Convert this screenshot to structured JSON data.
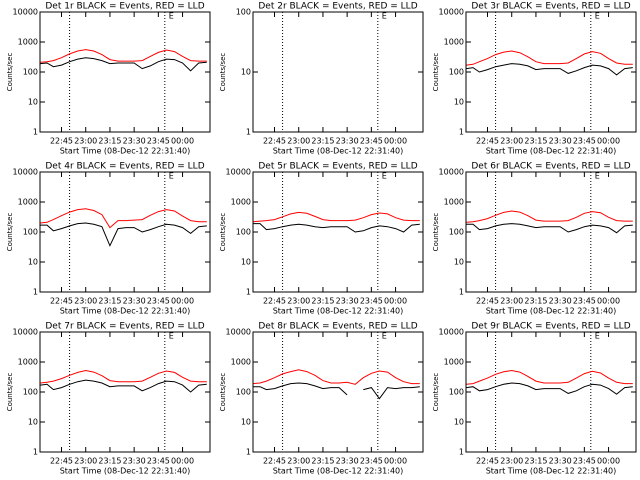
{
  "chart_data": [
    {
      "type": "line",
      "title": "Det 1r BLACK = Events, RED = LLD",
      "ylabel": "Counts/sec",
      "xlabel": "Start Time (08-Dec-12 22:31:40)",
      "log_y": true,
      "xlim": [
        31.67,
        137
      ],
      "ylim": [
        1,
        10000
      ],
      "yticks": [
        1,
        10,
        100,
        1000,
        10000
      ],
      "xticks": [
        {
          "value": 45,
          "label": "22:45"
        },
        {
          "value": 60,
          "label": "23:00"
        },
        {
          "value": 75,
          "label": "23:15"
        },
        {
          "value": 90,
          "label": "23:30"
        },
        {
          "value": 105,
          "label": "23:45"
        },
        {
          "value": 120,
          "label": "00:00"
        }
      ],
      "vlines": [
        50,
        109
      ],
      "annotations": [
        {
          "text": "E",
          "x": 113
        }
      ],
      "x": [
        32,
        36,
        40,
        45,
        50,
        55,
        60,
        65,
        70,
        75,
        80,
        85,
        90,
        95,
        100,
        105,
        110,
        115,
        120,
        125,
        130,
        135
      ],
      "series": [
        {
          "color": "#000000",
          "values": [
            190,
            200,
            150,
            170,
            220,
            270,
            300,
            280,
            240,
            190,
            200,
            200,
            200,
            130,
            160,
            220,
            270,
            260,
            200,
            110,
            200,
            210
          ]
        },
        {
          "color": "#ff0000",
          "values": [
            210,
            220,
            240,
            300,
            400,
            500,
            560,
            500,
            380,
            260,
            230,
            230,
            230,
            240,
            330,
            450,
            540,
            480,
            330,
            240,
            230,
            230
          ]
        }
      ]
    },
    {
      "type": "line",
      "title": "Det 2r BLACK = Events, RED = LLD",
      "ylabel": "Counts/sec",
      "xlabel": "Start Time (08-Dec-12 22:31:40)",
      "log_y": true,
      "xlim": [
        31.67,
        137
      ],
      "ylim": [
        1,
        100
      ],
      "yticks": [
        1,
        10,
        100
      ],
      "xticks": [
        {
          "value": 45,
          "label": "22:45"
        },
        {
          "value": 60,
          "label": "23:00"
        },
        {
          "value": 75,
          "label": "23:15"
        },
        {
          "value": 90,
          "label": "23:30"
        },
        {
          "value": 105,
          "label": "23:45"
        },
        {
          "value": 120,
          "label": "00:00"
        }
      ],
      "vlines": [
        50,
        109
      ],
      "annotations": [
        {
          "text": "E",
          "x": 113
        }
      ]
    },
    {
      "type": "line",
      "title": "Det 3r BLACK = Events, RED = LLD",
      "ylabel": "Counts/sec",
      "xlabel": "Start Time (08-Dec-12 22:31:40)",
      "log_y": true,
      "xlim": [
        31.67,
        137
      ],
      "ylim": [
        1,
        10000
      ],
      "yticks": [
        1,
        10,
        100,
        1000,
        10000
      ],
      "xticks": [
        {
          "value": 45,
          "label": "22:45"
        },
        {
          "value": 60,
          "label": "23:00"
        },
        {
          "value": 75,
          "label": "23:15"
        },
        {
          "value": 90,
          "label": "23:30"
        },
        {
          "value": 105,
          "label": "23:45"
        },
        {
          "value": 120,
          "label": "00:00"
        }
      ],
      "vlines": [
        50,
        109
      ],
      "annotations": [
        {
          "text": "E",
          "x": 113
        }
      ],
      "x": [
        32,
        36,
        40,
        45,
        50,
        55,
        60,
        65,
        70,
        75,
        80,
        85,
        90,
        95,
        100,
        105,
        110,
        115,
        120,
        125,
        130,
        135
      ],
      "series": [
        {
          "color": "#000000",
          "values": [
            130,
            140,
            100,
            120,
            150,
            170,
            190,
            180,
            160,
            120,
            130,
            130,
            130,
            90,
            110,
            140,
            170,
            160,
            130,
            80,
            130,
            140
          ]
        },
        {
          "color": "#ff0000",
          "values": [
            170,
            180,
            220,
            280,
            380,
            460,
            500,
            440,
            320,
            220,
            190,
            190,
            190,
            200,
            280,
            400,
            480,
            420,
            280,
            200,
            180,
            180
          ]
        }
      ]
    },
    {
      "type": "line",
      "title": "Det 4r BLACK = Events, RED = LLD",
      "ylabel": "Counts/sec",
      "xlabel": "Start Time (08-Dec-12 22:31:40)",
      "log_y": true,
      "xlim": [
        31.67,
        137
      ],
      "ylim": [
        1,
        10000
      ],
      "yticks": [
        1,
        10,
        100,
        1000,
        10000
      ],
      "xticks": [
        {
          "value": 45,
          "label": "22:45"
        },
        {
          "value": 60,
          "label": "23:00"
        },
        {
          "value": 75,
          "label": "23:15"
        },
        {
          "value": 90,
          "label": "23:30"
        },
        {
          "value": 105,
          "label": "23:45"
        },
        {
          "value": 120,
          "label": "00:00"
        }
      ],
      "vlines": [
        50,
        109
      ],
      "annotations": [
        {
          "text": "E",
          "x": 113
        }
      ],
      "x": [
        32,
        36,
        40,
        45,
        50,
        55,
        60,
        65,
        70,
        75,
        80,
        85,
        90,
        95,
        100,
        105,
        110,
        115,
        120,
        125,
        130,
        135
      ],
      "series": [
        {
          "color": "#000000",
          "values": [
            170,
            170,
            110,
            130,
            160,
            190,
            200,
            180,
            150,
            35,
            130,
            140,
            140,
            100,
            120,
            150,
            180,
            170,
            140,
            90,
            150,
            160
          ]
        },
        {
          "color": "#ff0000",
          "values": [
            200,
            210,
            260,
            350,
            460,
            560,
            600,
            520,
            380,
            140,
            240,
            240,
            250,
            260,
            360,
            480,
            560,
            500,
            340,
            240,
            220,
            220
          ]
        }
      ]
    },
    {
      "type": "line",
      "title": "Det 5r BLACK = Events, RED = LLD",
      "ylabel": "Counts/sec",
      "xlabel": "Start Time (08-Dec-12 22:31:40)",
      "log_y": true,
      "xlim": [
        31.67,
        137
      ],
      "ylim": [
        1,
        10000
      ],
      "yticks": [
        1,
        10,
        100,
        1000,
        10000
      ],
      "xticks": [
        {
          "value": 45,
          "label": "22:45"
        },
        {
          "value": 60,
          "label": "23:00"
        },
        {
          "value": 75,
          "label": "23:15"
        },
        {
          "value": 90,
          "label": "23:30"
        },
        {
          "value": 105,
          "label": "23:45"
        },
        {
          "value": 120,
          "label": "00:00"
        }
      ],
      "vlines": [
        50,
        109
      ],
      "annotations": [
        {
          "text": "E",
          "x": 113
        }
      ],
      "x": [
        32,
        36,
        40,
        45,
        50,
        55,
        60,
        65,
        70,
        75,
        80,
        85,
        90,
        95,
        100,
        105,
        110,
        115,
        120,
        125,
        130,
        135
      ],
      "series": [
        {
          "color": "#000000",
          "values": [
            190,
            190,
            120,
            130,
            150,
            170,
            180,
            170,
            150,
            140,
            150,
            150,
            150,
            100,
            110,
            140,
            160,
            150,
            130,
            100,
            170,
            180
          ]
        },
        {
          "color": "#ff0000",
          "values": [
            220,
            230,
            240,
            260,
            320,
            400,
            450,
            420,
            330,
            260,
            240,
            240,
            240,
            250,
            300,
            380,
            430,
            400,
            300,
            250,
            240,
            240
          ]
        }
      ]
    },
    {
      "type": "line",
      "title": "Det 6r BLACK = Events, RED = LLD",
      "ylabel": "Counts/sec",
      "xlabel": "Start Time (08-Dec-12 22:31:40)",
      "log_y": true,
      "xlim": [
        31.67,
        137
      ],
      "ylim": [
        1,
        10000
      ],
      "yticks": [
        1,
        10,
        100,
        1000,
        10000
      ],
      "xticks": [
        {
          "value": 45,
          "label": "22:45"
        },
        {
          "value": 60,
          "label": "23:00"
        },
        {
          "value": 75,
          "label": "23:15"
        },
        {
          "value": 90,
          "label": "23:30"
        },
        {
          "value": 105,
          "label": "23:45"
        },
        {
          "value": 120,
          "label": "00:00"
        }
      ],
      "vlines": [
        50,
        109
      ],
      "annotations": [
        {
          "text": "E",
          "x": 113
        }
      ],
      "x": [
        32,
        36,
        40,
        45,
        50,
        55,
        60,
        65,
        70,
        75,
        80,
        85,
        90,
        95,
        100,
        105,
        110,
        115,
        120,
        125,
        130,
        135
      ],
      "series": [
        {
          "color": "#000000",
          "values": [
            180,
            180,
            120,
            130,
            160,
            180,
            190,
            180,
            160,
            140,
            150,
            150,
            150,
            100,
            120,
            150,
            170,
            160,
            140,
            95,
            160,
            170
          ]
        },
        {
          "color": "#ff0000",
          "values": [
            210,
            220,
            240,
            280,
            360,
            450,
            500,
            460,
            350,
            250,
            230,
            230,
            230,
            240,
            310,
            420,
            480,
            440,
            310,
            240,
            230,
            230
          ]
        }
      ]
    },
    {
      "type": "line",
      "title": "Det 7r BLACK = Events, RED = LLD",
      "ylabel": "Counts/sec",
      "xlabel": "Start Time (08-Dec-12 22:31:40)",
      "log_y": true,
      "xlim": [
        31.67,
        137
      ],
      "ylim": [
        1,
        10000
      ],
      "yticks": [
        1,
        10,
        100,
        1000,
        10000
      ],
      "xticks": [
        {
          "value": 45,
          "label": "22:45"
        },
        {
          "value": 60,
          "label": "23:00"
        },
        {
          "value": 75,
          "label": "23:15"
        },
        {
          "value": 90,
          "label": "23:30"
        },
        {
          "value": 105,
          "label": "23:45"
        },
        {
          "value": 120,
          "label": "00:00"
        }
      ],
      "vlines": [
        50,
        109
      ],
      "annotations": [
        {
          "text": "E",
          "x": 113
        }
      ],
      "x": [
        32,
        36,
        40,
        45,
        50,
        55,
        60,
        65,
        70,
        75,
        80,
        85,
        90,
        95,
        100,
        105,
        110,
        115,
        120,
        125,
        130,
        135
      ],
      "series": [
        {
          "color": "#000000",
          "values": [
            170,
            180,
            120,
            140,
            180,
            220,
            250,
            230,
            200,
            150,
            160,
            160,
            160,
            110,
            140,
            190,
            230,
            220,
            170,
            100,
            170,
            180
          ]
        },
        {
          "color": "#ff0000",
          "values": [
            200,
            210,
            230,
            280,
            360,
            450,
            520,
            460,
            350,
            240,
            220,
            220,
            220,
            230,
            310,
            420,
            500,
            450,
            310,
            230,
            220,
            220
          ]
        }
      ]
    },
    {
      "type": "line",
      "title": "Det 8r BLACK = Events, RED = LLD",
      "ylabel": "Counts/sec",
      "xlabel": "Start Time (08-Dec-12 22:31:40)",
      "log_y": true,
      "xlim": [
        31.67,
        137
      ],
      "ylim": [
        1,
        10000
      ],
      "yticks": [
        1,
        10,
        100,
        1000,
        10000
      ],
      "xticks": [
        {
          "value": 45,
          "label": "22:45"
        },
        {
          "value": 60,
          "label": "23:00"
        },
        {
          "value": 75,
          "label": "23:15"
        },
        {
          "value": 90,
          "label": "23:30"
        },
        {
          "value": 105,
          "label": "23:45"
        },
        {
          "value": 120,
          "label": "00:00"
        }
      ],
      "vlines": [
        50,
        109
      ],
      "annotations": [
        {
          "text": "E",
          "x": 113
        }
      ],
      "x": [
        32,
        36,
        40,
        45,
        50,
        55,
        60,
        65,
        70,
        75,
        80,
        85,
        90,
        95,
        100,
        105,
        110,
        115,
        120,
        125,
        130,
        135
      ],
      "series": [
        {
          "color": "#000000",
          "values": [
            150,
            150,
            120,
            130,
            160,
            190,
            200,
            190,
            160,
            130,
            140,
            140,
            80,
            null,
            120,
            140,
            60,
            140,
            130,
            140,
            140,
            150
          ]
        },
        {
          "color": "#ff0000",
          "values": [
            190,
            200,
            230,
            300,
            400,
            480,
            550,
            480,
            360,
            240,
            200,
            200,
            210,
            180,
            300,
            420,
            500,
            460,
            300,
            220,
            190,
            190
          ]
        }
      ]
    },
    {
      "type": "line",
      "title": "Det 9r BLACK = Events, RED = LLD",
      "ylabel": "Counts/sec",
      "xlabel": "Start Time (08-Dec-12 22:31:40)",
      "log_y": true,
      "xlim": [
        31.67,
        137
      ],
      "ylim": [
        1,
        10000
      ],
      "yticks": [
        1,
        10,
        100,
        1000,
        10000
      ],
      "xticks": [
        {
          "value": 45,
          "label": "22:45"
        },
        {
          "value": 60,
          "label": "23:00"
        },
        {
          "value": 75,
          "label": "23:15"
        },
        {
          "value": 90,
          "label": "23:30"
        },
        {
          "value": 105,
          "label": "23:45"
        },
        {
          "value": 120,
          "label": "00:00"
        }
      ],
      "vlines": [
        50,
        109
      ],
      "annotations": [
        {
          "text": "E",
          "x": 113
        }
      ],
      "x": [
        32,
        36,
        40,
        45,
        50,
        55,
        60,
        65,
        70,
        75,
        80,
        85,
        90,
        95,
        100,
        105,
        110,
        115,
        120,
        125,
        130,
        135
      ],
      "series": [
        {
          "color": "#000000",
          "values": [
            140,
            150,
            110,
            120,
            150,
            180,
            200,
            190,
            160,
            120,
            130,
            130,
            130,
            90,
            110,
            150,
            180,
            170,
            130,
            85,
            140,
            150
          ]
        },
        {
          "color": "#ff0000",
          "values": [
            180,
            190,
            230,
            290,
            390,
            470,
            520,
            460,
            330,
            230,
            200,
            200,
            200,
            210,
            290,
            410,
            490,
            430,
            290,
            210,
            190,
            190
          ]
        }
      ]
    }
  ]
}
